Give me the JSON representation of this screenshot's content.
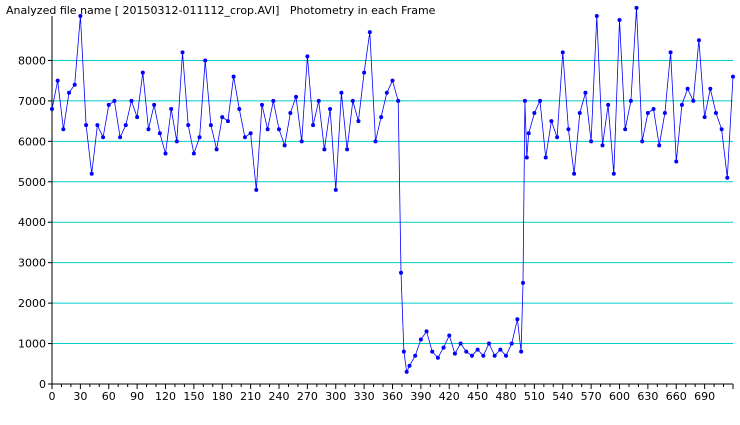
{
  "title": "Analyzed file name [ 20150312-011112_crop.AVI]   Photometry in each Frame",
  "colors": {
    "series": "#0000ff",
    "grid": "#00cccc",
    "axis": "#000000"
  },
  "chart_data": {
    "type": "line",
    "title": "Analyzed file name [ 20150312-011112_crop.AVI]   Photometry in each Frame",
    "xlabel": "",
    "ylabel": "",
    "xlim": [
      0,
      720
    ],
    "ylim": [
      0,
      9000
    ],
    "grid": true,
    "legend": "none",
    "xticks": [
      0,
      30,
      60,
      90,
      120,
      150,
      180,
      210,
      240,
      270,
      300,
      330,
      360,
      390,
      420,
      450,
      480,
      510,
      540,
      570,
      600,
      630,
      660,
      690
    ],
    "yticks": [
      0,
      1000,
      2000,
      3000,
      4000,
      5000,
      6000,
      7000,
      8000
    ],
    "series": [
      {
        "x": [
          0,
          6,
          12,
          18,
          24,
          30,
          36,
          42,
          48,
          54,
          60,
          66,
          72,
          78,
          84,
          90,
          96,
          102,
          108,
          114,
          120,
          126,
          132,
          138,
          144,
          150,
          156,
          162,
          168,
          174,
          180,
          186,
          192,
          198,
          204,
          210,
          216,
          222,
          228,
          234,
          240,
          246,
          252,
          258,
          264,
          270,
          276,
          282,
          288,
          294,
          300,
          306,
          312,
          318,
          324,
          330,
          336,
          342,
          348,
          354,
          360,
          366,
          369,
          372,
          375,
          378,
          384,
          390,
          396,
          402,
          408,
          414,
          420,
          426,
          432,
          438,
          444,
          450,
          456,
          462,
          468,
          474,
          480,
          486,
          492,
          496,
          498,
          500,
          502,
          504,
          510,
          516,
          522,
          528,
          534,
          540,
          546,
          552,
          558,
          564,
          570,
          576,
          582,
          588,
          594,
          600,
          606,
          612,
          618,
          624,
          630,
          636,
          642,
          648,
          654,
          660,
          666,
          672,
          678,
          684,
          690,
          696,
          702,
          708,
          714,
          720
        ],
        "values": [
          6800,
          7500,
          6300,
          7200,
          7400,
          9100,
          6400,
          5200,
          6400,
          6100,
          6900,
          7000,
          6100,
          6400,
          7000,
          6600,
          7700,
          6300,
          6900,
          6200,
          5700,
          6800,
          6000,
          8200,
          6400,
          5700,
          6100,
          8000,
          6400,
          5800,
          6600,
          6500,
          7600,
          6800,
          6100,
          6200,
          4800,
          6900,
          6300,
          7000,
          6300,
          5900,
          6700,
          7100,
          6000,
          8100,
          6400,
          7000,
          5800,
          6800,
          4800,
          7200,
          5800,
          7000,
          6500,
          7700,
          8700,
          6000,
          6600,
          7200,
          7500,
          7000,
          2750,
          800,
          300,
          450,
          700,
          1100,
          1300,
          800,
          650,
          900,
          1200,
          750,
          1000,
          800,
          700,
          850,
          700,
          1000,
          700,
          850,
          700,
          1000,
          1600,
          800,
          2500,
          7000,
          5600,
          6200,
          6700,
          7000,
          5600,
          6500,
          6100,
          8200,
          6300,
          5200,
          6700,
          7200,
          6000,
          9100,
          5900,
          6900,
          5200,
          9000,
          6300,
          7000,
          9300,
          6000,
          6700,
          6800,
          5900,
          6700,
          8200,
          5500,
          6900,
          7300,
          7000,
          8500,
          6600,
          7300,
          6700,
          6300,
          5100,
          7600
        ]
      }
    ]
  }
}
